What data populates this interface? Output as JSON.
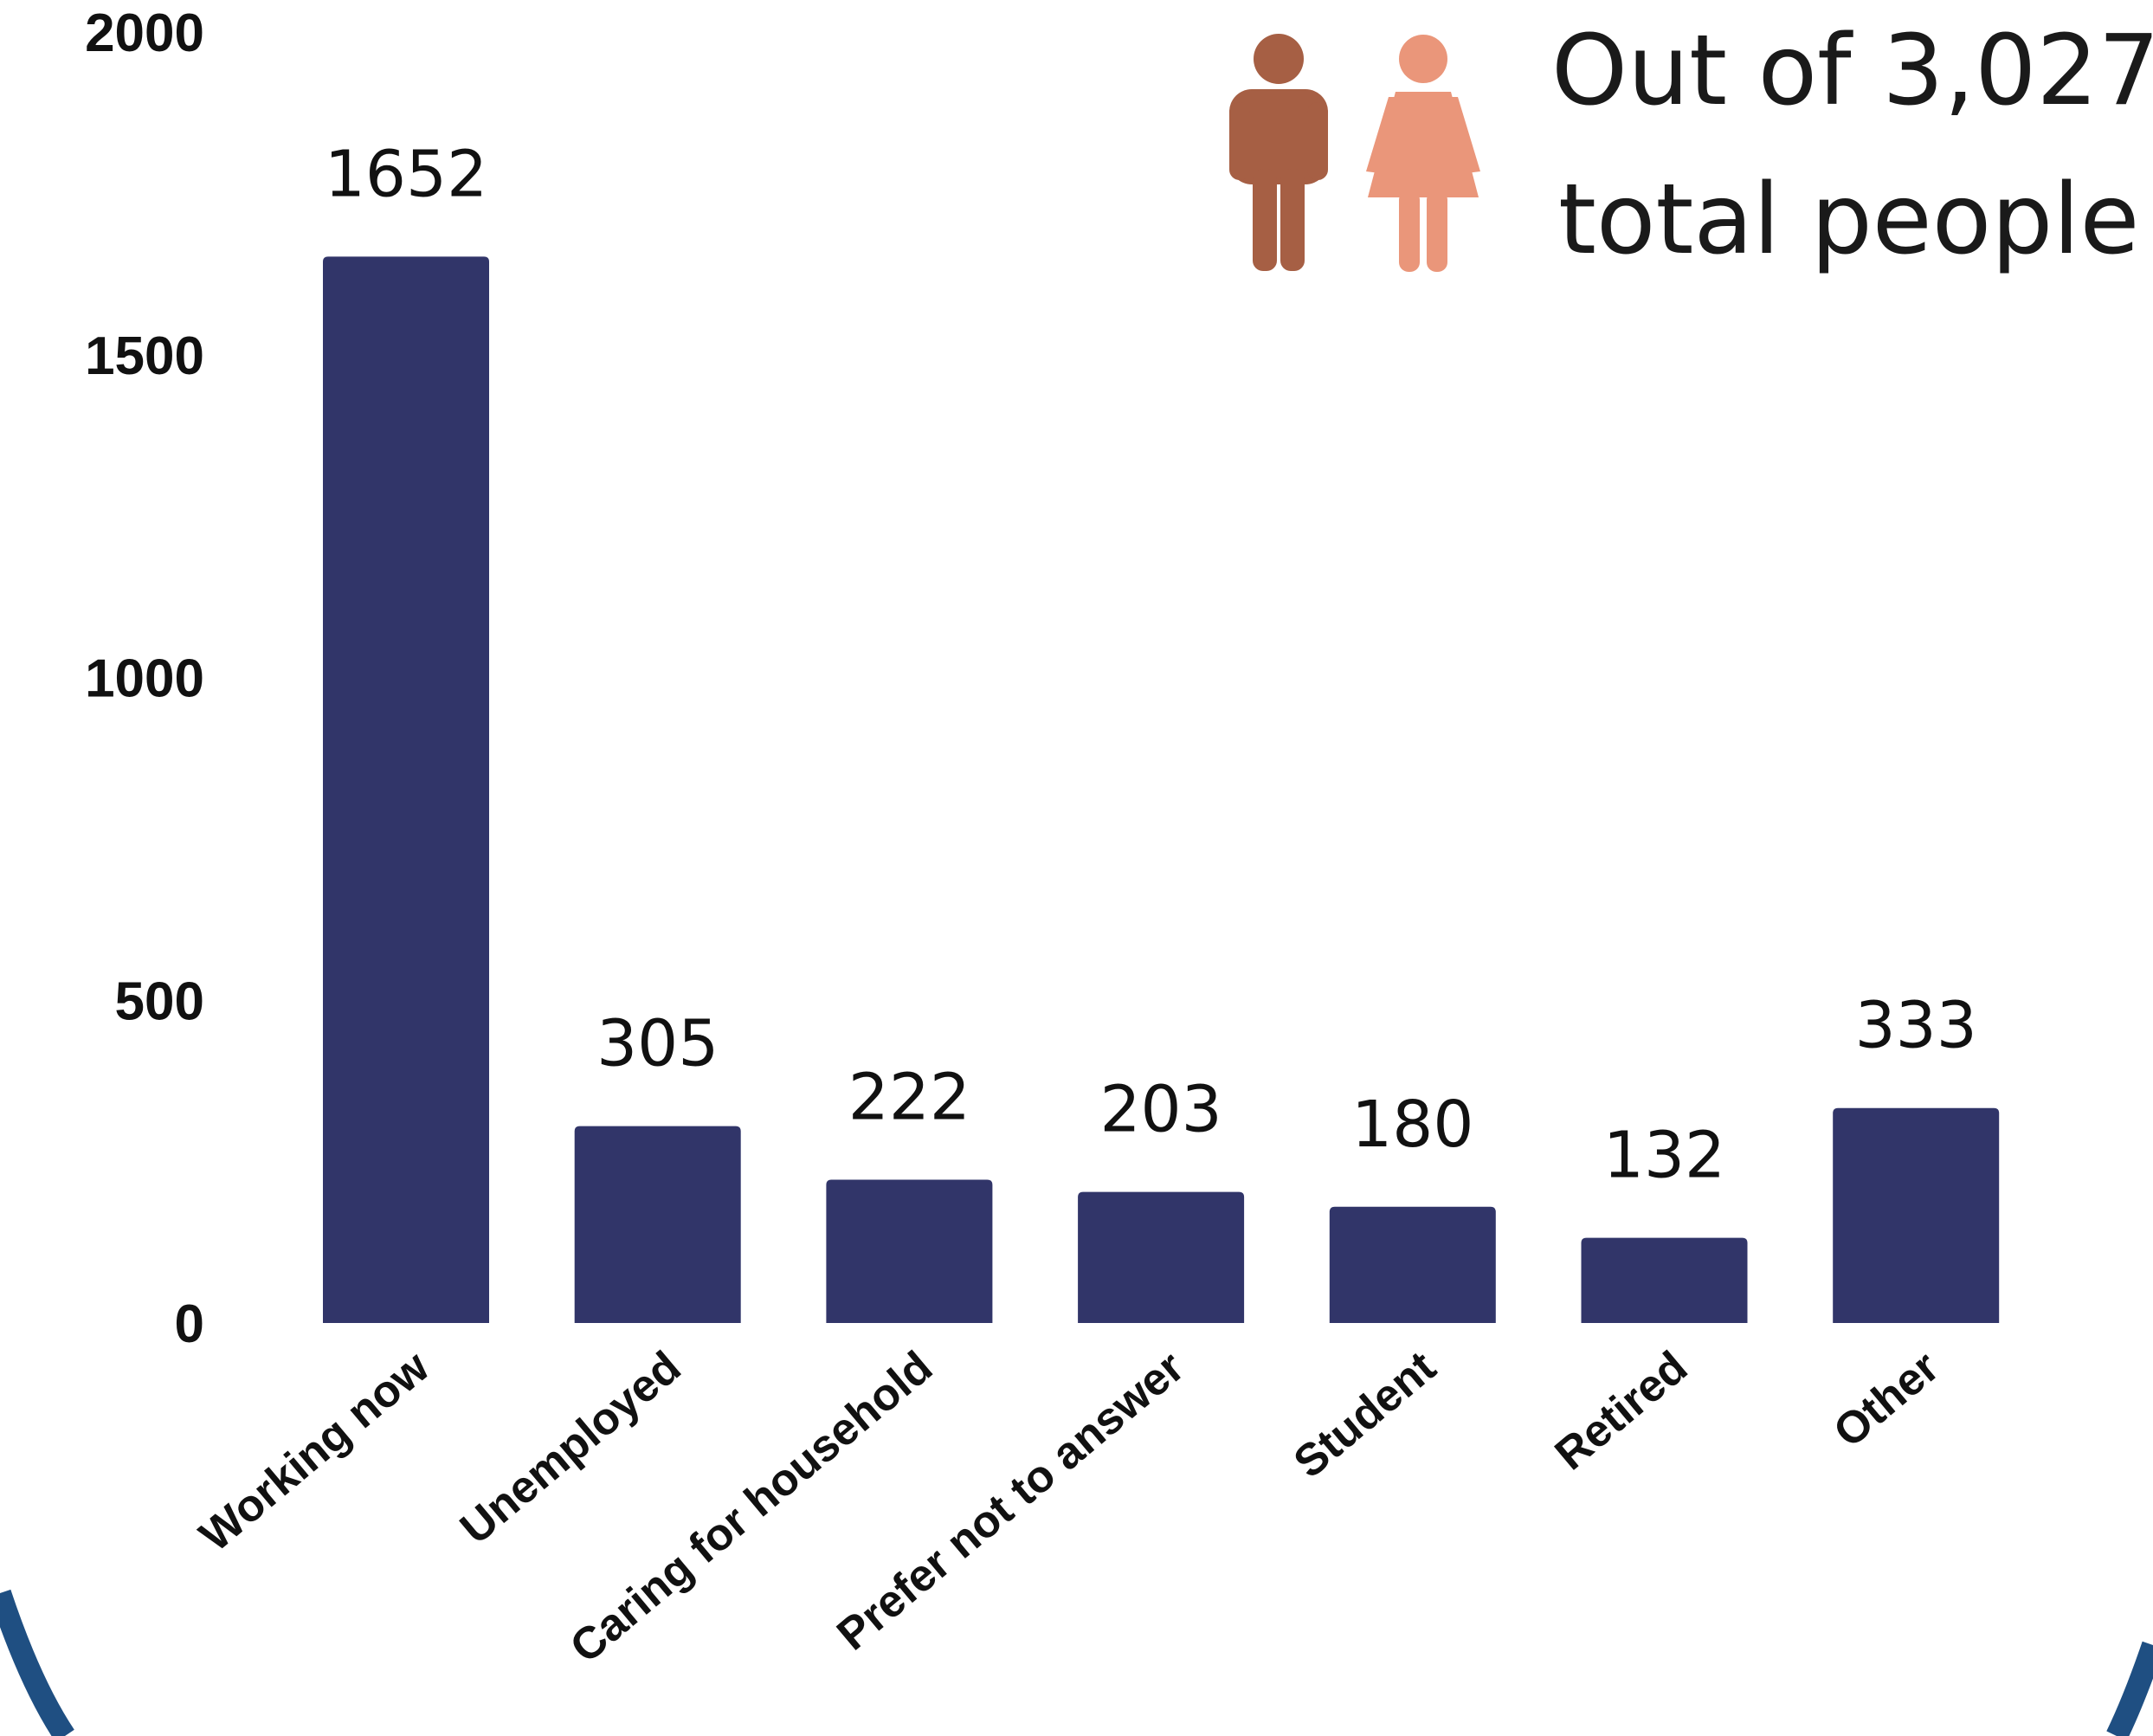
{
  "chart_data": {
    "type": "bar",
    "categories": [
      "Working now",
      "Unemployed",
      "Caring for household",
      "Prefer not to answer",
      "Student",
      "Retired",
      "Other"
    ],
    "values": [
      1652,
      305,
      222,
      203,
      180,
      132,
      333
    ],
    "data_labels": [
      "1652",
      "305",
      "222",
      "203",
      "180",
      "132",
      "333"
    ],
    "y_ticks": [
      "0",
      "500",
      "1000",
      "1500",
      "2000"
    ],
    "ylim": [
      0,
      2000
    ],
    "grid": false,
    "bar_color": "#313569"
  },
  "annotation": {
    "line1": "Out of 3,027",
    "line2": "total people",
    "icons": [
      "man-icon",
      "woman-icon"
    ],
    "man_color": "#A65F44",
    "woman_color": "#EA967A"
  },
  "border_color": "#1F4F82"
}
